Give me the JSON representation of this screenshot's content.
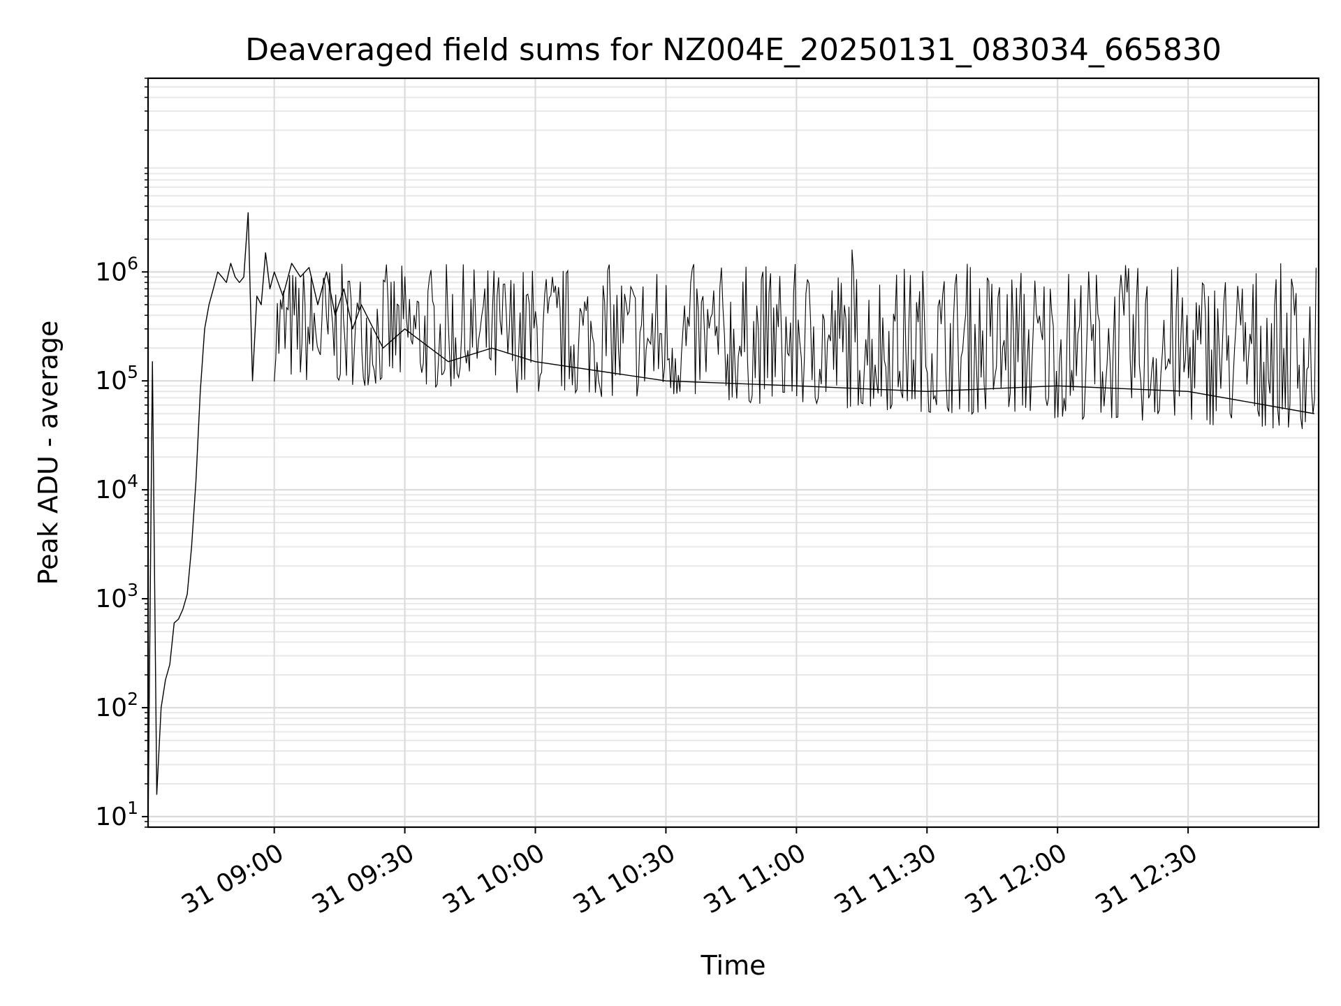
{
  "chart_data": {
    "type": "line",
    "title": "Deaveraged field sums for NZ004E_20250131_083034_665830",
    "xlabel": "Time",
    "ylabel": "Peak ADU - average",
    "y_scale": "log",
    "ylim": [
      8,
      60000000
    ],
    "xlim": [
      "31 08:31",
      "31 13:00"
    ],
    "grid": "major and minor, light gray",
    "legend": "none",
    "line_color": "#000000",
    "x_ticks": [
      "31 09:00",
      "31 09:30",
      "31 10:00",
      "31 10:30",
      "31 11:00",
      "31 11:30",
      "31 12:00",
      "31 12:30"
    ],
    "y_ticks": [
      {
        "base": "10",
        "exp": "1",
        "value": 10
      },
      {
        "base": "10",
        "exp": "2",
        "value": 100
      },
      {
        "base": "10",
        "exp": "3",
        "value": 1000
      },
      {
        "base": "10",
        "exp": "4",
        "value": 10000
      },
      {
        "base": "10",
        "exp": "5",
        "value": 100000
      },
      {
        "base": "10",
        "exp": "6",
        "value": 1000000
      }
    ],
    "series": [
      {
        "x": [
          "31 08:32",
          "31 08:33",
          "31 08:34",
          "31 08:35",
          "31 08:36",
          "31 08:37",
          "31 08:38",
          "31 08:39",
          "31 08:40",
          "31 08:41",
          "31 08:42",
          "31 08:43",
          "31 08:44",
          "31 08:45",
          "31 08:46",
          "31 08:47",
          "31 08:48",
          "31 08:49",
          "31 08:50",
          "31 08:51",
          "31 08:52",
          "31 08:53",
          "31 08:54",
          "31 08:55",
          "31 08:56",
          "31 08:57",
          "31 08:58",
          "31 08:59",
          "31 09:00",
          "31 09:02",
          "31 09:04",
          "31 09:06",
          "31 09:08",
          "31 09:10",
          "31 09:12",
          "31 09:14",
          "31 09:16",
          "31 09:18",
          "31 09:20",
          "31 09:25",
          "31 09:30",
          "31 09:40",
          "31 09:50",
          "31 10:00",
          "31 10:30",
          "31 11:00",
          "31 11:30",
          "31 12:00",
          "31 12:30",
          "31 12:59"
        ],
        "y": [
          150000,
          16,
          100,
          180,
          250,
          600,
          650,
          800,
          1100,
          3000,
          12000,
          80000,
          300000,
          500000,
          700000,
          1000000,
          900000,
          800000,
          1200000,
          900000,
          800000,
          900000,
          3500000,
          100000,
          600000,
          500000,
          1500000,
          700000,
          1000000,
          600000,
          1200000,
          900000,
          1100000,
          500000,
          1000000,
          400000,
          700000,
          300000,
          500000,
          200000,
          300000,
          150000,
          200000,
          150000,
          100000,
          90000,
          80000,
          90000,
          80000,
          50000
        ],
        "envelope_low": 35000,
        "envelope_high": 1200000
      }
    ]
  }
}
